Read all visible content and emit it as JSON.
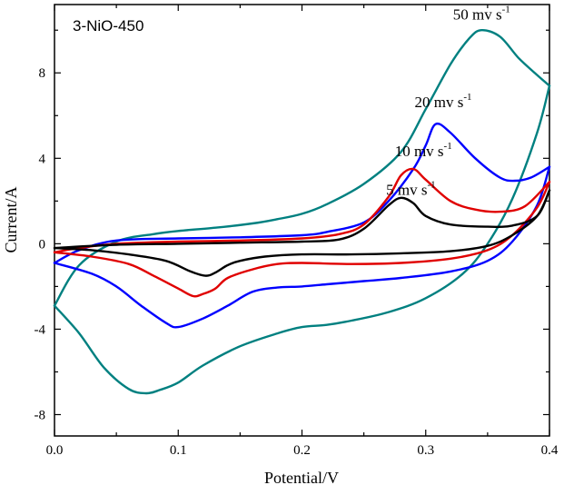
{
  "chart_data": {
    "type": "line",
    "title": "3-NiO-450",
    "xlabel": "Potential/V",
    "ylabel": "Current/A",
    "xlim": [
      0.0,
      0.4
    ],
    "ylim": [
      -9,
      11.2
    ],
    "x_ticks": [
      "0.0",
      "0.1",
      "0.2",
      "0.3",
      "0.4"
    ],
    "y_ticks": [
      "-8",
      "-4",
      "0",
      "4",
      "8"
    ],
    "grid": false,
    "series": [
      {
        "name": "50 mv s-1",
        "label_main": "50 mv s",
        "label_sup": "-1",
        "color": "#008080",
        "anodic": [
          [
            0.0,
            -2.9
          ],
          [
            0.02,
            -1.0
          ],
          [
            0.05,
            0.1
          ],
          [
            0.08,
            0.45
          ],
          [
            0.1,
            0.6
          ],
          [
            0.13,
            0.75
          ],
          [
            0.16,
            0.95
          ],
          [
            0.18,
            1.15
          ],
          [
            0.2,
            1.4
          ],
          [
            0.22,
            1.85
          ],
          [
            0.25,
            2.8
          ],
          [
            0.28,
            4.3
          ],
          [
            0.3,
            6.3
          ],
          [
            0.32,
            8.4
          ],
          [
            0.335,
            9.6
          ],
          [
            0.345,
            10.0
          ],
          [
            0.36,
            9.7
          ],
          [
            0.375,
            8.7
          ],
          [
            0.39,
            7.9
          ],
          [
            0.4,
            7.4
          ]
        ],
        "cathodic": [
          [
            0.4,
            7.4
          ],
          [
            0.39,
            5.2
          ],
          [
            0.37,
            2.1
          ],
          [
            0.35,
            0.0
          ],
          [
            0.33,
            -1.4
          ],
          [
            0.3,
            -2.55
          ],
          [
            0.27,
            -3.2
          ],
          [
            0.24,
            -3.6
          ],
          [
            0.22,
            -3.8
          ],
          [
            0.2,
            -3.9
          ],
          [
            0.18,
            -4.2
          ],
          [
            0.15,
            -4.8
          ],
          [
            0.12,
            -5.7
          ],
          [
            0.1,
            -6.5
          ],
          [
            0.085,
            -6.85
          ],
          [
            0.074,
            -7.0
          ],
          [
            0.06,
            -6.8
          ],
          [
            0.04,
            -5.8
          ],
          [
            0.02,
            -4.2
          ],
          [
            0.0,
            -2.9
          ]
        ]
      },
      {
        "name": "20 mv s-1",
        "label_main": "20 mv s",
        "label_sup": "-1",
        "color": "#0000ff",
        "anodic": [
          [
            0.0,
            -0.9
          ],
          [
            0.02,
            -0.3
          ],
          [
            0.05,
            0.15
          ],
          [
            0.1,
            0.25
          ],
          [
            0.15,
            0.3
          ],
          [
            0.2,
            0.4
          ],
          [
            0.22,
            0.55
          ],
          [
            0.25,
            1.0
          ],
          [
            0.27,
            2.0
          ],
          [
            0.29,
            3.5
          ],
          [
            0.3,
            4.6
          ],
          [
            0.308,
            5.6
          ],
          [
            0.32,
            5.2
          ],
          [
            0.34,
            4.0
          ],
          [
            0.36,
            3.1
          ],
          [
            0.372,
            2.95
          ],
          [
            0.385,
            3.1
          ],
          [
            0.4,
            3.6
          ]
        ],
        "cathodic": [
          [
            0.4,
            3.6
          ],
          [
            0.39,
            1.8
          ],
          [
            0.37,
            0.1
          ],
          [
            0.35,
            -0.8
          ],
          [
            0.32,
            -1.3
          ],
          [
            0.28,
            -1.6
          ],
          [
            0.25,
            -1.75
          ],
          [
            0.22,
            -1.9
          ],
          [
            0.2,
            -2.0
          ],
          [
            0.18,
            -2.05
          ],
          [
            0.16,
            -2.25
          ],
          [
            0.14,
            -2.9
          ],
          [
            0.12,
            -3.5
          ],
          [
            0.1,
            -3.9
          ],
          [
            0.09,
            -3.7
          ],
          [
            0.07,
            -2.9
          ],
          [
            0.05,
            -2.0
          ],
          [
            0.03,
            -1.4
          ],
          [
            0.0,
            -0.9
          ]
        ]
      },
      {
        "name": "10 mv s-1",
        "label_main": "10 mv s",
        "label_sup": "-1",
        "color": "#e00000",
        "anodic": [
          [
            0.0,
            -0.4
          ],
          [
            0.02,
            -0.2
          ],
          [
            0.05,
            0.0
          ],
          [
            0.1,
            0.1
          ],
          [
            0.15,
            0.15
          ],
          [
            0.2,
            0.25
          ],
          [
            0.23,
            0.45
          ],
          [
            0.25,
            0.9
          ],
          [
            0.27,
            2.2
          ],
          [
            0.28,
            3.2
          ],
          [
            0.29,
            3.5
          ],
          [
            0.3,
            3.0
          ],
          [
            0.32,
            2.0
          ],
          [
            0.34,
            1.6
          ],
          [
            0.36,
            1.5
          ],
          [
            0.38,
            1.75
          ],
          [
            0.4,
            2.9
          ]
        ],
        "cathodic": [
          [
            0.4,
            2.9
          ],
          [
            0.39,
            1.7
          ],
          [
            0.37,
            0.4
          ],
          [
            0.35,
            -0.3
          ],
          [
            0.32,
            -0.7
          ],
          [
            0.28,
            -0.9
          ],
          [
            0.24,
            -0.95
          ],
          [
            0.2,
            -0.9
          ],
          [
            0.18,
            -0.95
          ],
          [
            0.16,
            -1.2
          ],
          [
            0.14,
            -1.6
          ],
          [
            0.13,
            -2.1
          ],
          [
            0.12,
            -2.35
          ],
          [
            0.112,
            -2.45
          ],
          [
            0.1,
            -2.1
          ],
          [
            0.08,
            -1.5
          ],
          [
            0.06,
            -0.95
          ],
          [
            0.03,
            -0.6
          ],
          [
            0.0,
            -0.4
          ]
        ]
      },
      {
        "name": "5 mv s-1",
        "label_main": "5 mv s",
        "label_sup": "-1",
        "color": "#000000",
        "anodic": [
          [
            0.0,
            -0.2
          ],
          [
            0.05,
            -0.05
          ],
          [
            0.1,
            0.0
          ],
          [
            0.15,
            0.05
          ],
          [
            0.2,
            0.1
          ],
          [
            0.23,
            0.2
          ],
          [
            0.25,
            0.7
          ],
          [
            0.27,
            1.8
          ],
          [
            0.28,
            2.15
          ],
          [
            0.29,
            1.9
          ],
          [
            0.3,
            1.3
          ],
          [
            0.32,
            0.9
          ],
          [
            0.35,
            0.8
          ],
          [
            0.37,
            0.85
          ],
          [
            0.39,
            1.3
          ],
          [
            0.4,
            2.5
          ]
        ],
        "cathodic": [
          [
            0.4,
            2.5
          ],
          [
            0.39,
            1.3
          ],
          [
            0.37,
            0.4
          ],
          [
            0.35,
            -0.1
          ],
          [
            0.32,
            -0.35
          ],
          [
            0.28,
            -0.45
          ],
          [
            0.24,
            -0.5
          ],
          [
            0.2,
            -0.5
          ],
          [
            0.17,
            -0.6
          ],
          [
            0.15,
            -0.8
          ],
          [
            0.14,
            -1.0
          ],
          [
            0.13,
            -1.35
          ],
          [
            0.122,
            -1.5
          ],
          [
            0.11,
            -1.3
          ],
          [
            0.09,
            -0.8
          ],
          [
            0.06,
            -0.5
          ],
          [
            0.03,
            -0.3
          ],
          [
            0.0,
            -0.2
          ]
        ]
      }
    ]
  }
}
